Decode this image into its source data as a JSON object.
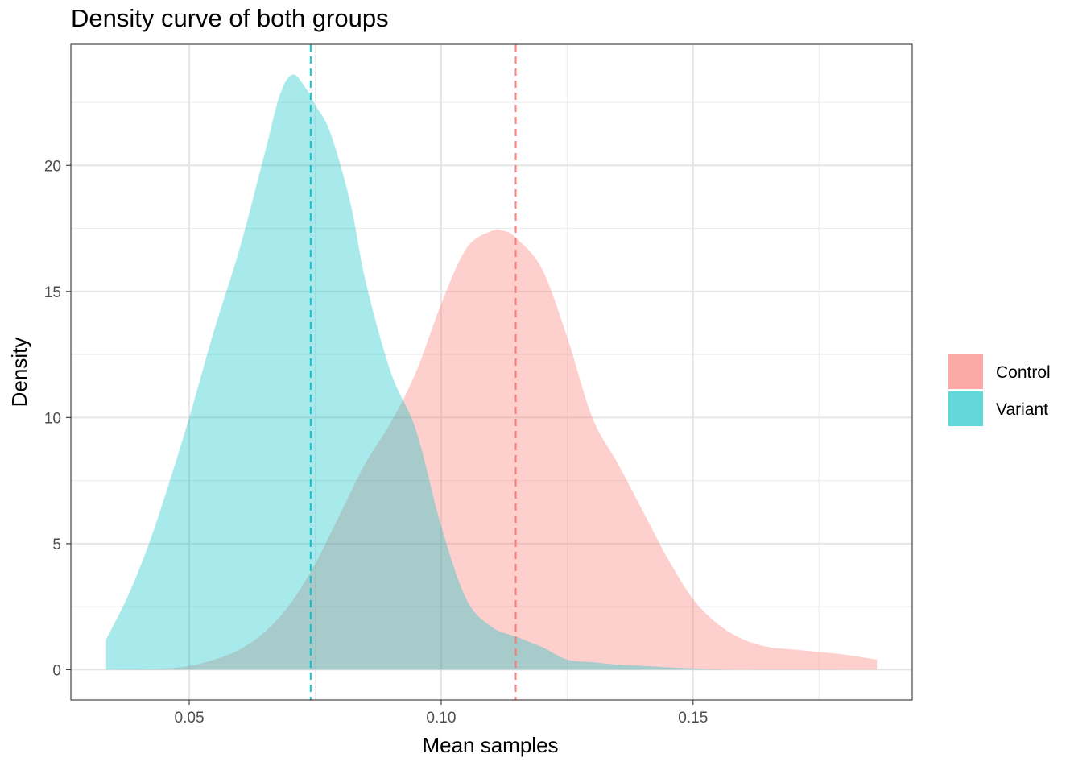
{
  "chart_data": {
    "type": "area",
    "title": "Density curve of both groups",
    "xlabel": "Mean samples",
    "ylabel": "Density",
    "xlim": [
      0.0265,
      0.1935
    ],
    "ylim": [
      -1.2,
      24.8
    ],
    "x_ticks": [
      "0.05",
      "0.10",
      "0.15"
    ],
    "x_tick_values": [
      0.05,
      0.1,
      0.15
    ],
    "y_ticks": [
      "0",
      "5",
      "10",
      "15",
      "20"
    ],
    "y_tick_values": [
      0,
      5,
      10,
      15,
      20
    ],
    "grid": true,
    "legend_position": "right",
    "series": [
      {
        "name": "Control",
        "color": "#F8766D",
        "mean": 0.1148,
        "x": [
          0.0335,
          0.045,
          0.05,
          0.055,
          0.06,
          0.065,
          0.07,
          0.075,
          0.08,
          0.085,
          0.09,
          0.095,
          0.1,
          0.105,
          0.11,
          0.1125,
          0.115,
          0.12,
          0.125,
          0.13,
          0.135,
          0.14,
          0.145,
          0.15,
          0.155,
          0.16,
          0.165,
          0.17,
          0.175,
          0.18,
          0.1865
        ],
        "y": [
          0.0,
          0.05,
          0.15,
          0.4,
          0.8,
          1.5,
          2.6,
          4.2,
          6.2,
          8.2,
          9.8,
          11.8,
          14.5,
          16.7,
          17.4,
          17.4,
          17.1,
          15.9,
          13.2,
          10.0,
          8.2,
          6.3,
          4.4,
          2.8,
          1.8,
          1.2,
          0.9,
          0.8,
          0.7,
          0.6,
          0.4
        ]
      },
      {
        "name": "Variant",
        "color": "#00BFC4",
        "mean": 0.0741,
        "x": [
          0.0335,
          0.038,
          0.042,
          0.046,
          0.05,
          0.055,
          0.06,
          0.065,
          0.068,
          0.0705,
          0.073,
          0.075,
          0.078,
          0.082,
          0.085,
          0.09,
          0.095,
          0.1,
          0.105,
          0.11,
          0.115,
          0.12,
          0.125,
          0.13,
          0.135,
          0.14,
          0.15,
          0.16,
          0.1865
        ],
        "y": [
          1.2,
          3.0,
          5.0,
          7.4,
          10.0,
          13.5,
          16.7,
          20.5,
          22.8,
          23.6,
          23.1,
          22.4,
          21.3,
          18.5,
          15.4,
          11.8,
          9.5,
          5.7,
          2.8,
          1.7,
          1.3,
          0.9,
          0.4,
          0.3,
          0.2,
          0.15,
          0.05,
          0.0,
          0.0
        ]
      }
    ]
  }
}
